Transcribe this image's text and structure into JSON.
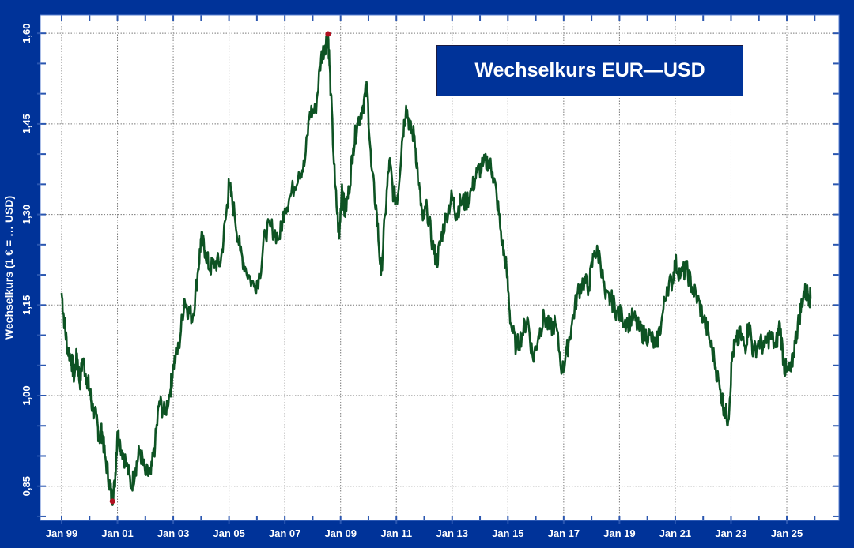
{
  "chart_data": {
    "type": "line",
    "title": "Wechselkurs EUR—USD",
    "xlabel": "",
    "ylabel": "Wechselkurs (1 € = … USD)",
    "ylim": [
      0.8,
      1.63
    ],
    "xlim": [
      1998.23,
      2026.87
    ],
    "yticks": [
      0.85,
      1.0,
      1.15,
      1.3,
      1.45,
      1.6
    ],
    "ytick_labels": [
      "0,85",
      "1,00",
      "1,15",
      "1,30",
      "1,45",
      "1,60"
    ],
    "xticks": [
      1999,
      2001,
      2003,
      2005,
      2007,
      2009,
      2011,
      2013,
      2015,
      2017,
      2019,
      2021,
      2023,
      2025
    ],
    "xtick_labels": [
      "Jan 99",
      "Jan 01",
      "Jan 03",
      "Jan 05",
      "Jan 07",
      "Jan 09",
      "Jan 11",
      "Jan 13",
      "Jan 15",
      "Jan 17",
      "Jan 19",
      "Jan 21",
      "Jan 23",
      "Jan 25"
    ],
    "grid": true,
    "line_color": "#0d5323",
    "marker_color": "#b01020",
    "series": [
      {
        "name": "EUR/USD",
        "x": [
          1999.0,
          1999.1,
          1999.2,
          1999.35,
          1999.45,
          1999.55,
          1999.65,
          1999.75,
          1999.9,
          2000.0,
          2000.1,
          2000.25,
          2000.35,
          2000.45,
          2000.55,
          2000.7,
          2000.8,
          2000.9,
          2001.0,
          2001.1,
          2001.3,
          2001.5,
          2001.65,
          2001.8,
          2002.0,
          2002.2,
          2002.35,
          2002.5,
          2002.7,
          2002.9,
          2003.0,
          2003.2,
          2003.4,
          2003.55,
          2003.7,
          2003.9,
          2004.0,
          2004.15,
          2004.3,
          2004.5,
          2004.7,
          2004.9,
          2005.0,
          2005.2,
          2005.4,
          2005.6,
          2005.9,
          2006.1,
          2006.3,
          2006.5,
          2006.8,
          2007.0,
          2007.2,
          2007.5,
          2007.7,
          2007.9,
          2008.1,
          2008.3,
          2008.45,
          2008.55,
          2008.65,
          2008.8,
          2008.95,
          2009.05,
          2009.15,
          2009.3,
          2009.45,
          2009.6,
          2009.8,
          2009.95,
          2010.1,
          2010.3,
          2010.45,
          2010.6,
          2010.75,
          2010.9,
          2011.05,
          2011.2,
          2011.35,
          2011.5,
          2011.65,
          2011.8,
          2011.95,
          2012.1,
          2012.3,
          2012.45,
          2012.6,
          2012.8,
          2013.0,
          2013.15,
          2013.3,
          2013.5,
          2013.7,
          2013.9,
          2014.1,
          2014.3,
          2014.45,
          2014.6,
          2014.8,
          2014.95,
          2015.1,
          2015.3,
          2015.5,
          2015.7,
          2015.9,
          2016.1,
          2016.3,
          2016.5,
          2016.7,
          2016.95,
          2017.1,
          2017.3,
          2017.5,
          2017.7,
          2017.9,
          2018.1,
          2018.3,
          2018.5,
          2018.7,
          2018.9,
          2019.1,
          2019.3,
          2019.5,
          2019.7,
          2019.9,
          2020.1,
          2020.3,
          2020.5,
          2020.7,
          2020.9,
          2021.0,
          2021.2,
          2021.4,
          2021.6,
          2021.8,
          2022.0,
          2022.2,
          2022.4,
          2022.6,
          2022.75,
          2022.9,
          2023.05,
          2023.2,
          2023.35,
          2023.5,
          2023.65,
          2023.8,
          2024.0,
          2024.2,
          2024.4,
          2024.6,
          2024.75,
          2024.9,
          2025.0,
          2025.15,
          2025.3,
          2025.45,
          2025.6,
          2025.75,
          2025.85
        ],
        "values": [
          1.17,
          1.12,
          1.08,
          1.06,
          1.03,
          1.07,
          1.02,
          1.06,
          1.03,
          1.01,
          0.98,
          0.96,
          0.93,
          0.94,
          0.9,
          0.86,
          0.83,
          0.85,
          0.94,
          0.92,
          0.89,
          0.85,
          0.88,
          0.91,
          0.87,
          0.87,
          0.92,
          0.99,
          0.97,
          1.01,
          1.05,
          1.08,
          1.16,
          1.14,
          1.13,
          1.21,
          1.26,
          1.24,
          1.21,
          1.22,
          1.22,
          1.3,
          1.35,
          1.3,
          1.24,
          1.21,
          1.18,
          1.2,
          1.27,
          1.28,
          1.26,
          1.31,
          1.33,
          1.37,
          1.38,
          1.47,
          1.47,
          1.56,
          1.58,
          1.6,
          1.5,
          1.35,
          1.26,
          1.35,
          1.3,
          1.34,
          1.41,
          1.45,
          1.48,
          1.51,
          1.38,
          1.3,
          1.2,
          1.3,
          1.39,
          1.33,
          1.33,
          1.42,
          1.48,
          1.44,
          1.43,
          1.35,
          1.29,
          1.31,
          1.25,
          1.22,
          1.26,
          1.3,
          1.33,
          1.3,
          1.32,
          1.32,
          1.34,
          1.37,
          1.38,
          1.39,
          1.37,
          1.33,
          1.25,
          1.21,
          1.12,
          1.08,
          1.1,
          1.13,
          1.06,
          1.1,
          1.13,
          1.11,
          1.12,
          1.04,
          1.07,
          1.12,
          1.17,
          1.19,
          1.18,
          1.24,
          1.23,
          1.16,
          1.16,
          1.14,
          1.13,
          1.12,
          1.13,
          1.11,
          1.1,
          1.1,
          1.08,
          1.12,
          1.18,
          1.19,
          1.22,
          1.2,
          1.21,
          1.18,
          1.16,
          1.13,
          1.1,
          1.06,
          1.01,
          0.98,
          0.96,
          1.07,
          1.09,
          1.1,
          1.08,
          1.12,
          1.07,
          1.09,
          1.08,
          1.1,
          1.08,
          1.12,
          1.05,
          1.04,
          1.04,
          1.09,
          1.13,
          1.17,
          1.17,
          1.16
        ],
        "annotated_min": {
          "x": 2000.82,
          "value": 0.825
        },
        "annotated_max": {
          "x": 2008.55,
          "value": 1.599
        }
      }
    ]
  },
  "title_box": {
    "text": "Wechselkurs EUR—USD"
  }
}
